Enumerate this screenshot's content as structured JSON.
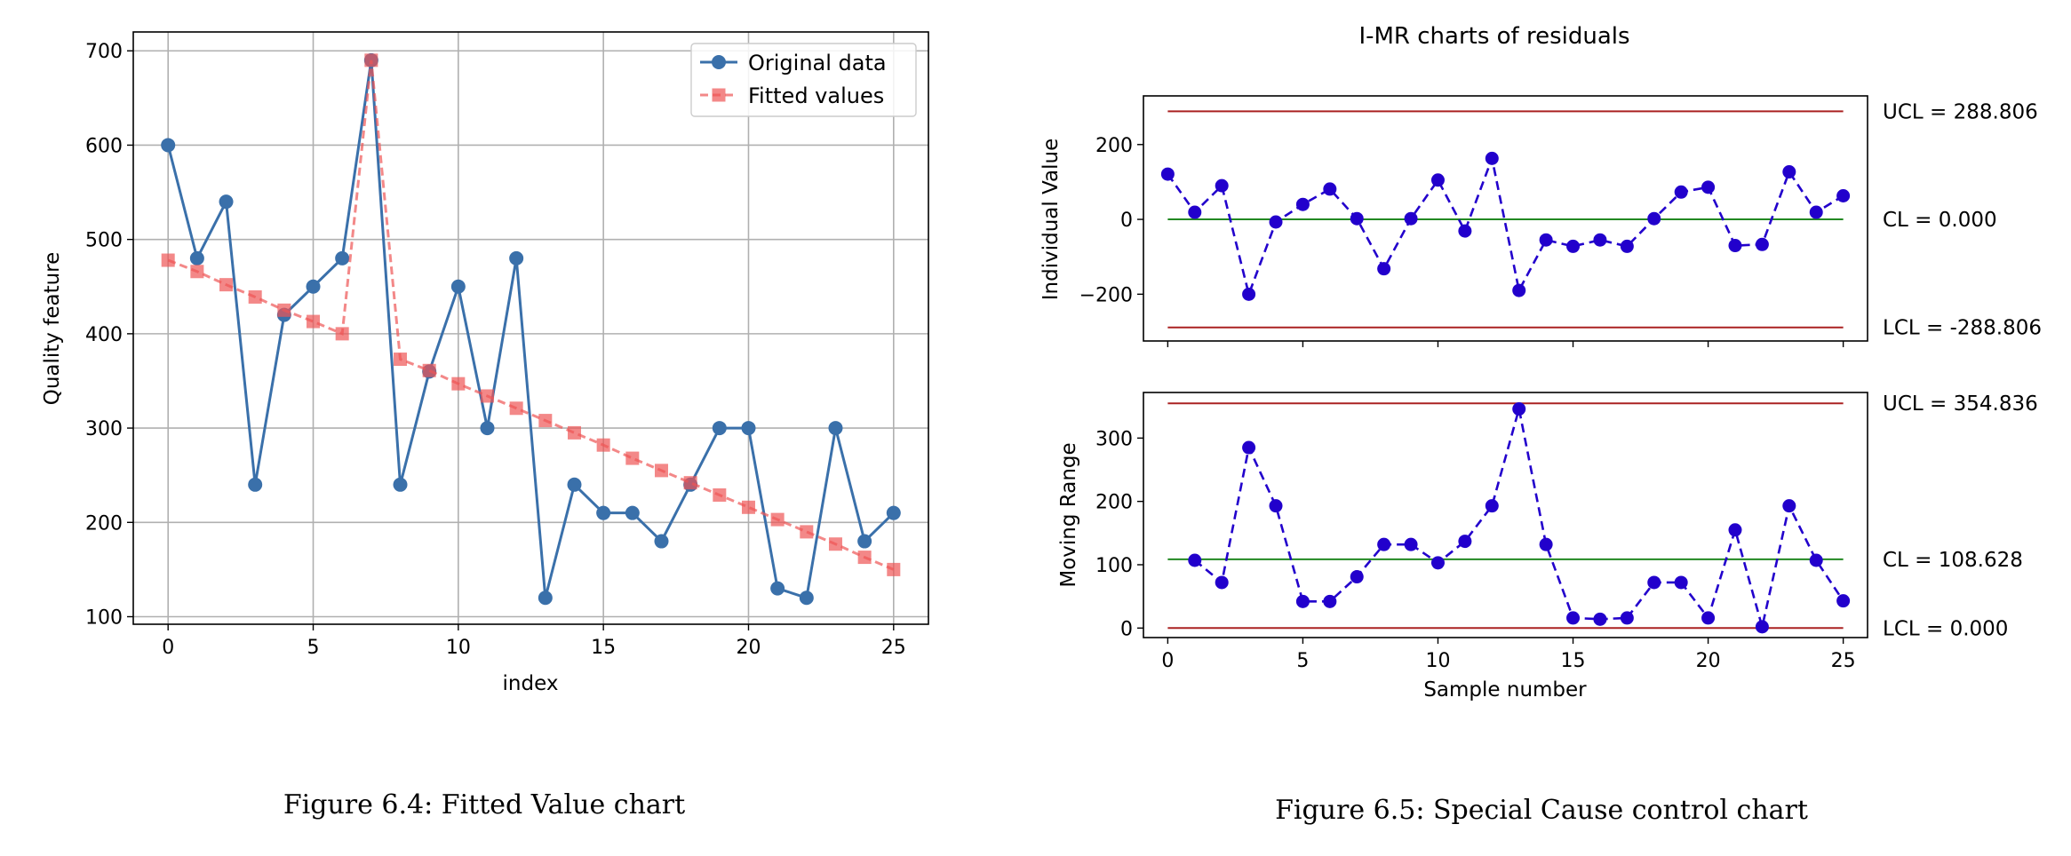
{
  "chart_data": [
    {
      "type": "line",
      "xlabel": "index",
      "ylabel": "Quality feature",
      "xlim": [
        -1.2,
        26.2
      ],
      "ylim": [
        92,
        720
      ],
      "xticks": [
        0,
        5,
        10,
        15,
        20,
        25
      ],
      "yticks": [
        100,
        200,
        300,
        400,
        500,
        600,
        700
      ],
      "grid": true,
      "legend_position": "top-right",
      "series": [
        {
          "name": "Original data",
          "color": "#3a70aa",
          "marker": "circle",
          "linestyle": "solid",
          "x": [
            0,
            1,
            2,
            3,
            4,
            5,
            6,
            7,
            8,
            9,
            10,
            11,
            12,
            13,
            14,
            15,
            16,
            17,
            18,
            19,
            20,
            21,
            22,
            23,
            24,
            25
          ],
          "y": [
            600,
            480,
            540,
            240,
            420,
            450,
            480,
            690,
            240,
            360,
            450,
            300,
            480,
            120,
            240,
            210,
            210,
            180,
            240,
            300,
            300,
            130,
            120,
            300,
            180,
            210
          ]
        },
        {
          "name": "Fitted values",
          "color": "#ee5555",
          "marker": "square",
          "linestyle": "dashed",
          "x": [
            0,
            1,
            2,
            3,
            4,
            5,
            6,
            7,
            8,
            9,
            10,
            11,
            12,
            13,
            14,
            15,
            16,
            17,
            18,
            19,
            20,
            21,
            22,
            23,
            24,
            25
          ],
          "y": [
            478,
            466,
            452,
            439,
            425,
            413,
            400,
            690,
            373,
            361,
            347,
            334,
            321,
            308,
            295,
            282,
            268,
            255,
            242,
            229,
            216,
            203,
            190,
            177,
            163,
            150
          ]
        }
      ],
      "caption": "Figure 6.4: Fitted Value chart"
    },
    {
      "type": "line",
      "title": "I-MR charts of residuals",
      "caption": "Figure 6.5: Special Cause control chart",
      "panels": [
        {
          "ylabel": "Individual Value",
          "xlim": [
            -0.9,
            25.9
          ],
          "ylim": [
            -325,
            330
          ],
          "yticks": [
            -200,
            0,
            200
          ],
          "ytick_labels": [
            "−200",
            "0",
            "200"
          ],
          "xticks": [
            0,
            5,
            10,
            15,
            20,
            25
          ],
          "series": [
            {
              "color": "#2200cc",
              "marker": "circle",
              "linestyle": "dashed",
              "x": [
                0,
                1,
                2,
                3,
                4,
                5,
                6,
                7,
                8,
                9,
                10,
                11,
                12,
                13,
                14,
                15,
                16,
                17,
                18,
                19,
                20,
                21,
                22,
                23,
                24,
                25
              ],
              "y": [
                121,
                19,
                90,
                -200,
                -7,
                40,
                81,
                2,
                -132,
                2,
                105,
                -31,
                163,
                -190,
                -55,
                -72,
                -55,
                -72,
                2,
                73,
                86,
                -70,
                -67,
                127,
                19,
                63
              ]
            }
          ],
          "limits": [
            {
              "label": "UCL = 288.806",
              "value": 288.806,
              "color": "#aa2222"
            },
            {
              "label": "CL = 0.000",
              "value": 0,
              "color": "#228822"
            },
            {
              "label": "LCL = -288.806",
              "value": -288.806,
              "color": "#aa2222"
            }
          ]
        },
        {
          "ylabel": "Moving Range",
          "xlabel": "Sample number",
          "xlim": [
            -0.9,
            25.9
          ],
          "ylim": [
            -15,
            372
          ],
          "yticks": [
            0,
            100,
            200,
            300
          ],
          "ytick_labels": [
            "0",
            "100",
            "200",
            "300"
          ],
          "xticks": [
            0,
            5,
            10,
            15,
            20,
            25
          ],
          "series": [
            {
              "color": "#2200cc",
              "marker": "circle",
              "linestyle": "dashed",
              "x": [
                1,
                2,
                3,
                4,
                5,
                6,
                7,
                8,
                9,
                10,
                11,
                12,
                13,
                14,
                15,
                16,
                17,
                18,
                19,
                20,
                21,
                22,
                23,
                24,
                25
              ],
              "y": [
                107,
                72,
                285,
                193,
                42,
                42,
                81,
                132,
                132,
                103,
                137,
                193,
                346,
                132,
                16,
                14,
                16,
                72,
                72,
                16,
                155,
                2,
                193,
                107,
                43
              ]
            }
          ],
          "limits": [
            {
              "label": "UCL = 354.836",
              "value": 354.836,
              "color": "#aa2222"
            },
            {
              "label": "CL = 108.628",
              "value": 108.628,
              "color": "#228822"
            },
            {
              "label": "LCL = 0.000",
              "value": 0,
              "color": "#aa2222"
            }
          ]
        }
      ]
    }
  ]
}
